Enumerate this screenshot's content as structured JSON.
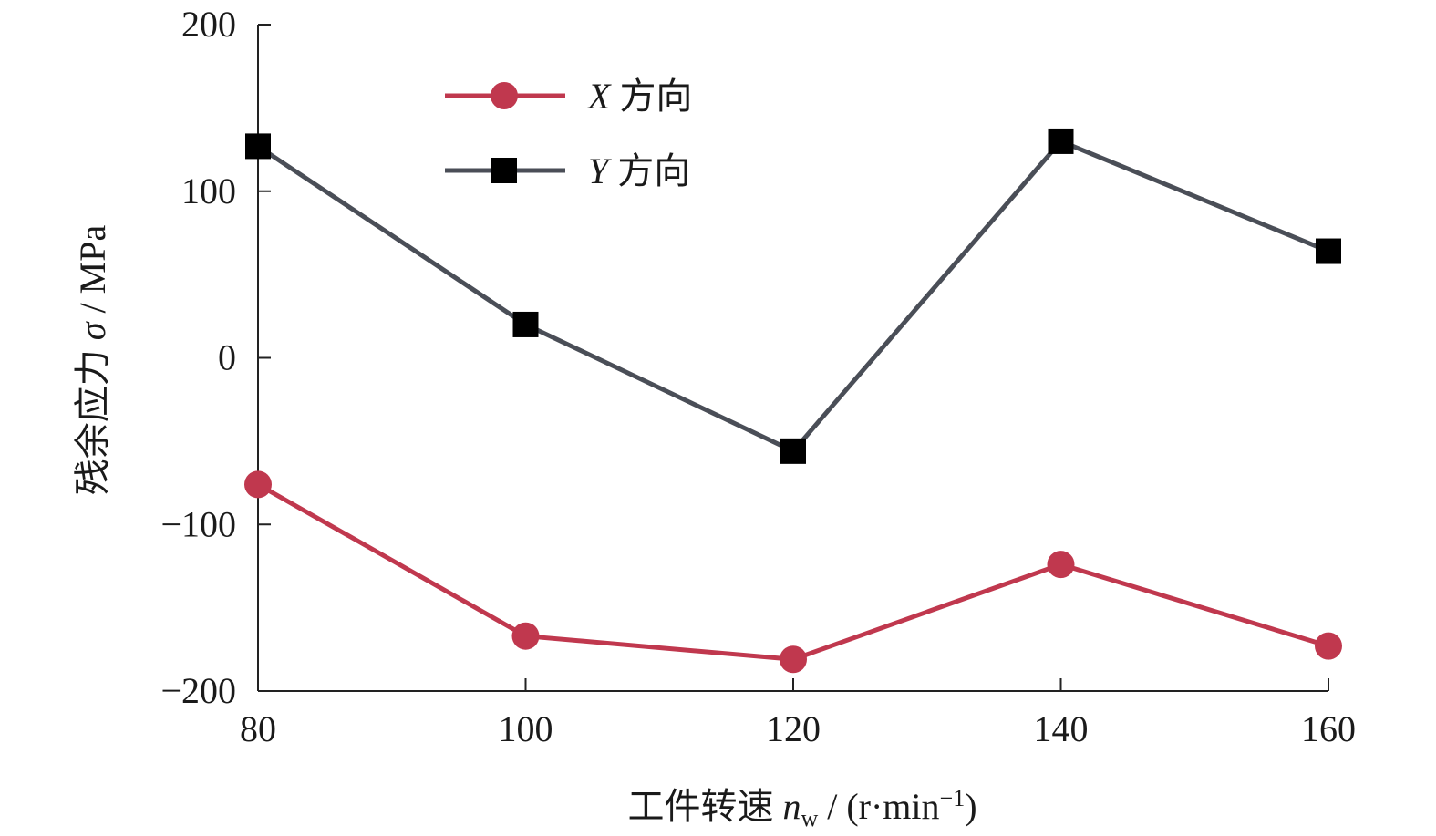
{
  "chart_data": {
    "type": "line",
    "title": "",
    "xlabel": {
      "prefix": "工件转速 ",
      "var": "n",
      "sub": "w",
      "unit_open": " / (r·min",
      "sup": "−1",
      "unit_close": ")"
    },
    "ylabel": {
      "prefix": "残余应力 ",
      "var": "σ",
      "unit": " / MPa"
    },
    "xlim": [
      80,
      160
    ],
    "ylim": [
      -200,
      200
    ],
    "xticks": [
      80,
      100,
      120,
      140,
      160
    ],
    "yticks": [
      200,
      100,
      0,
      -100,
      -200
    ],
    "ytick_labels": [
      "200",
      "100",
      "0",
      "−100",
      "−200"
    ],
    "grid": false,
    "legend_position": "top-left",
    "x": [
      80,
      100,
      120,
      140,
      160
    ],
    "series": [
      {
        "name_var": "X",
        "name_text": " 方向",
        "marker": "circle",
        "color": "#c0384e",
        "values": [
          -76,
          -167,
          -181,
          -124,
          -173
        ]
      },
      {
        "name_var": "Y",
        "name_text": " 方向",
        "marker": "square",
        "color": "#4a4e57",
        "values": [
          127,
          20,
          -56,
          130,
          64
        ]
      }
    ]
  }
}
